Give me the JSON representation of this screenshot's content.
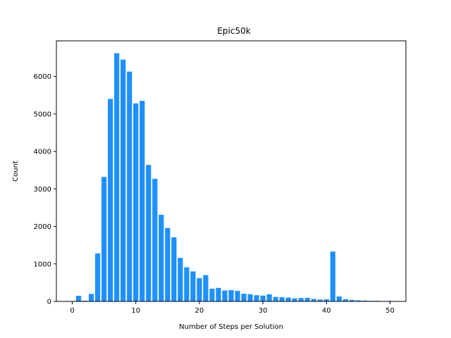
{
  "chart_data": {
    "type": "bar",
    "title": "Epic50k",
    "xlabel": "Number of Steps per Solution",
    "ylabel": "Count",
    "xlim": [
      -2.5,
      52.5
    ],
    "ylim": [
      0,
      6950
    ],
    "x_ticks": [
      0,
      10,
      20,
      30,
      40,
      50
    ],
    "y_ticks": [
      0,
      1000,
      2000,
      3000,
      4000,
      5000,
      6000
    ],
    "bar_color": "#1e90ff",
    "x": [
      0,
      1,
      2,
      3,
      4,
      5,
      6,
      7,
      8,
      9,
      10,
      11,
      12,
      13,
      14,
      15,
      16,
      17,
      18,
      19,
      20,
      21,
      22,
      23,
      24,
      25,
      26,
      27,
      28,
      29,
      30,
      31,
      32,
      33,
      34,
      35,
      36,
      37,
      38,
      39,
      40,
      41,
      42,
      43,
      44,
      45,
      46,
      47,
      48,
      49,
      50
    ],
    "values": [
      5,
      150,
      20,
      200,
      1280,
      3320,
      5400,
      6620,
      6450,
      6130,
      5280,
      5350,
      3640,
      3270,
      2310,
      1960,
      1710,
      1160,
      910,
      800,
      620,
      700,
      340,
      360,
      290,
      300,
      280,
      205,
      190,
      165,
      155,
      190,
      120,
      110,
      100,
      80,
      90,
      95,
      65,
      50,
      55,
      1330,
      130,
      60,
      40,
      30,
      20,
      15,
      15,
      10,
      15
    ],
    "legend": "none",
    "grid": false
  }
}
